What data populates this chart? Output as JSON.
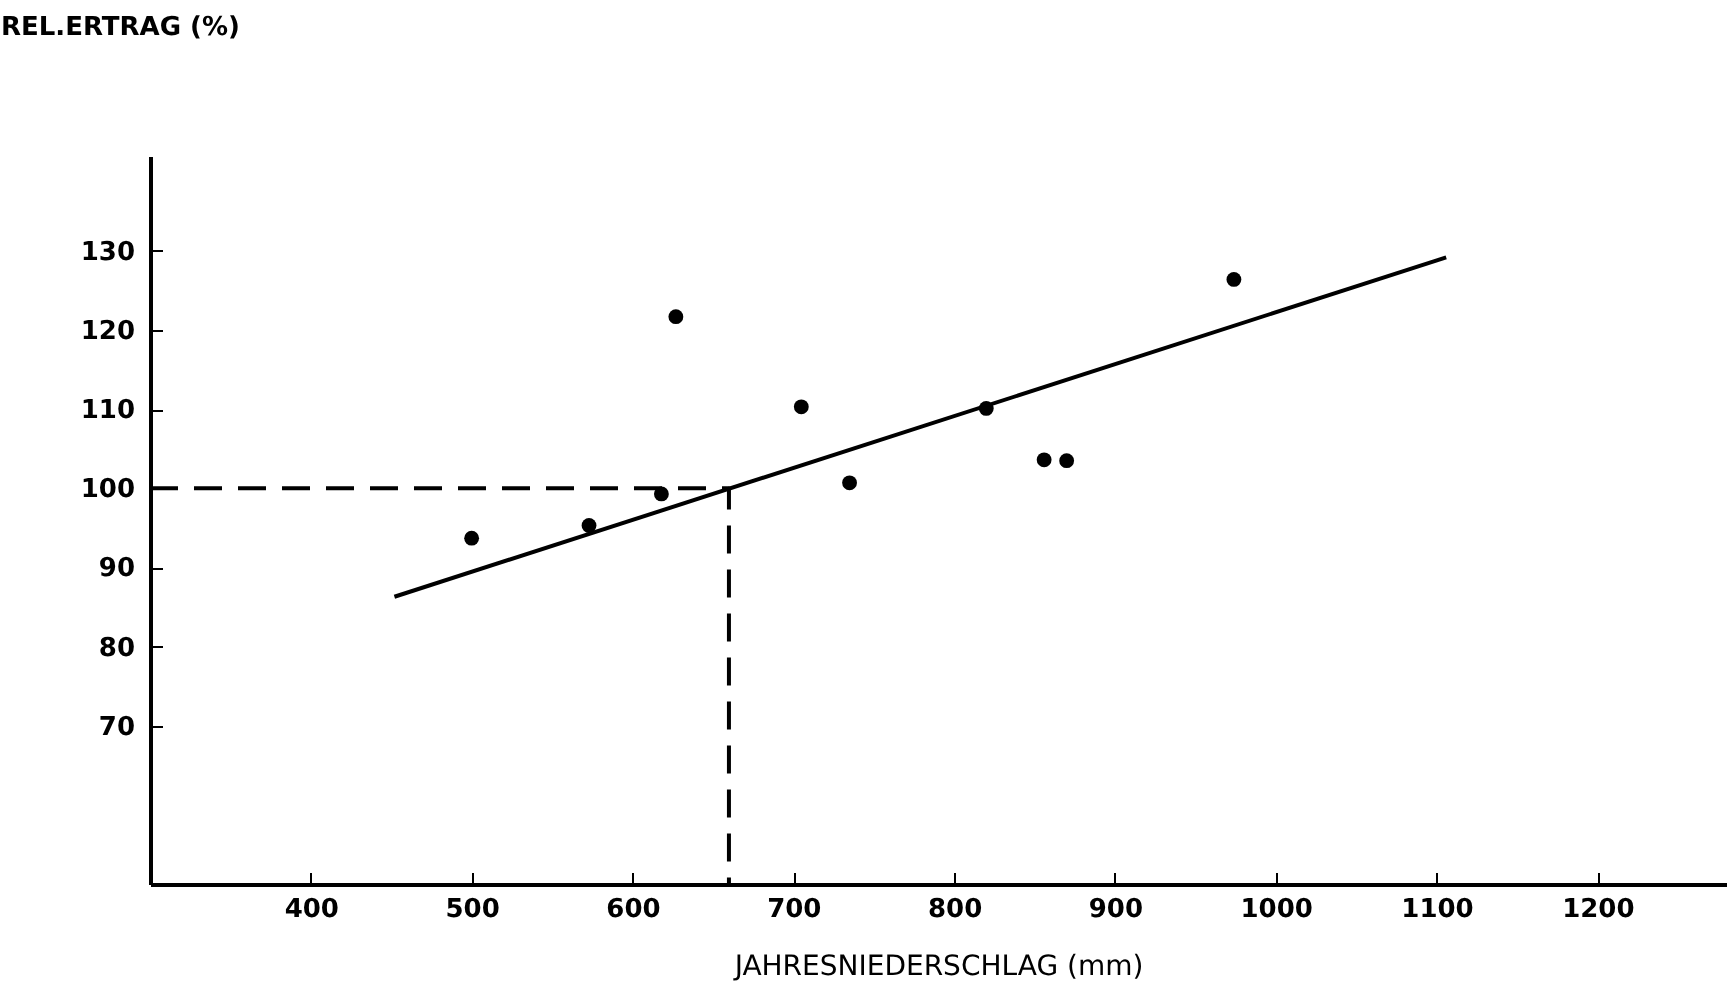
{
  "chart_data": {
    "type": "scatter",
    "xlabel": "JAHRESNIEDERSCHLAG (mm)",
    "ylabel": "REL.ERTRAG (%)",
    "xlim": [
      300,
      1280
    ],
    "ylim": [
      50,
      142
    ],
    "xticks": [
      400,
      500,
      600,
      700,
      800,
      900,
      1000,
      1100,
      1200
    ],
    "yticks": [
      70,
      80,
      90,
      100,
      110,
      120,
      130
    ],
    "grid": false,
    "marker": "circle",
    "series": [
      {
        "color": "#000000",
        "x": [
          500,
          573,
          618,
          627,
          705,
          735,
          820,
          856,
          870,
          974
        ],
        "values": [
          93.7,
          95.3,
          99.3,
          121.7,
          110.3,
          100.7,
          110.1,
          103.6,
          103.5,
          126.4
        ]
      },
      {
        "type": "line",
        "color": "#000000",
        "line_style": "solid",
        "marker": "none",
        "x": [
          452,
          1106
        ],
        "values": [
          86.3,
          129.2
        ]
      },
      {
        "type": "line",
        "color": "#000000",
        "line_style": "dashed",
        "marker": "none",
        "x": [
          300,
          660,
          660
        ],
        "values": [
          100,
          100,
          50
        ]
      }
    ]
  }
}
